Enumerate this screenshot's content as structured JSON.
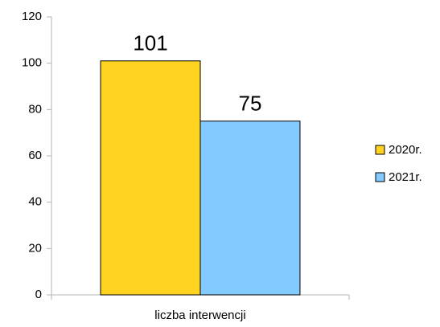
{
  "chart_data": {
    "type": "bar",
    "categories": [
      "liczba interwencji"
    ],
    "series": [
      {
        "name": "2020r.",
        "color": "#ffd320",
        "values": [
          101
        ]
      },
      {
        "name": "2021r.",
        "color": "#83caff",
        "values": [
          75
        ]
      }
    ],
    "ylim": [
      0,
      120
    ],
    "yticks": [
      0,
      20,
      40,
      60,
      80,
      100,
      120
    ],
    "grid": false,
    "legend": "right"
  }
}
